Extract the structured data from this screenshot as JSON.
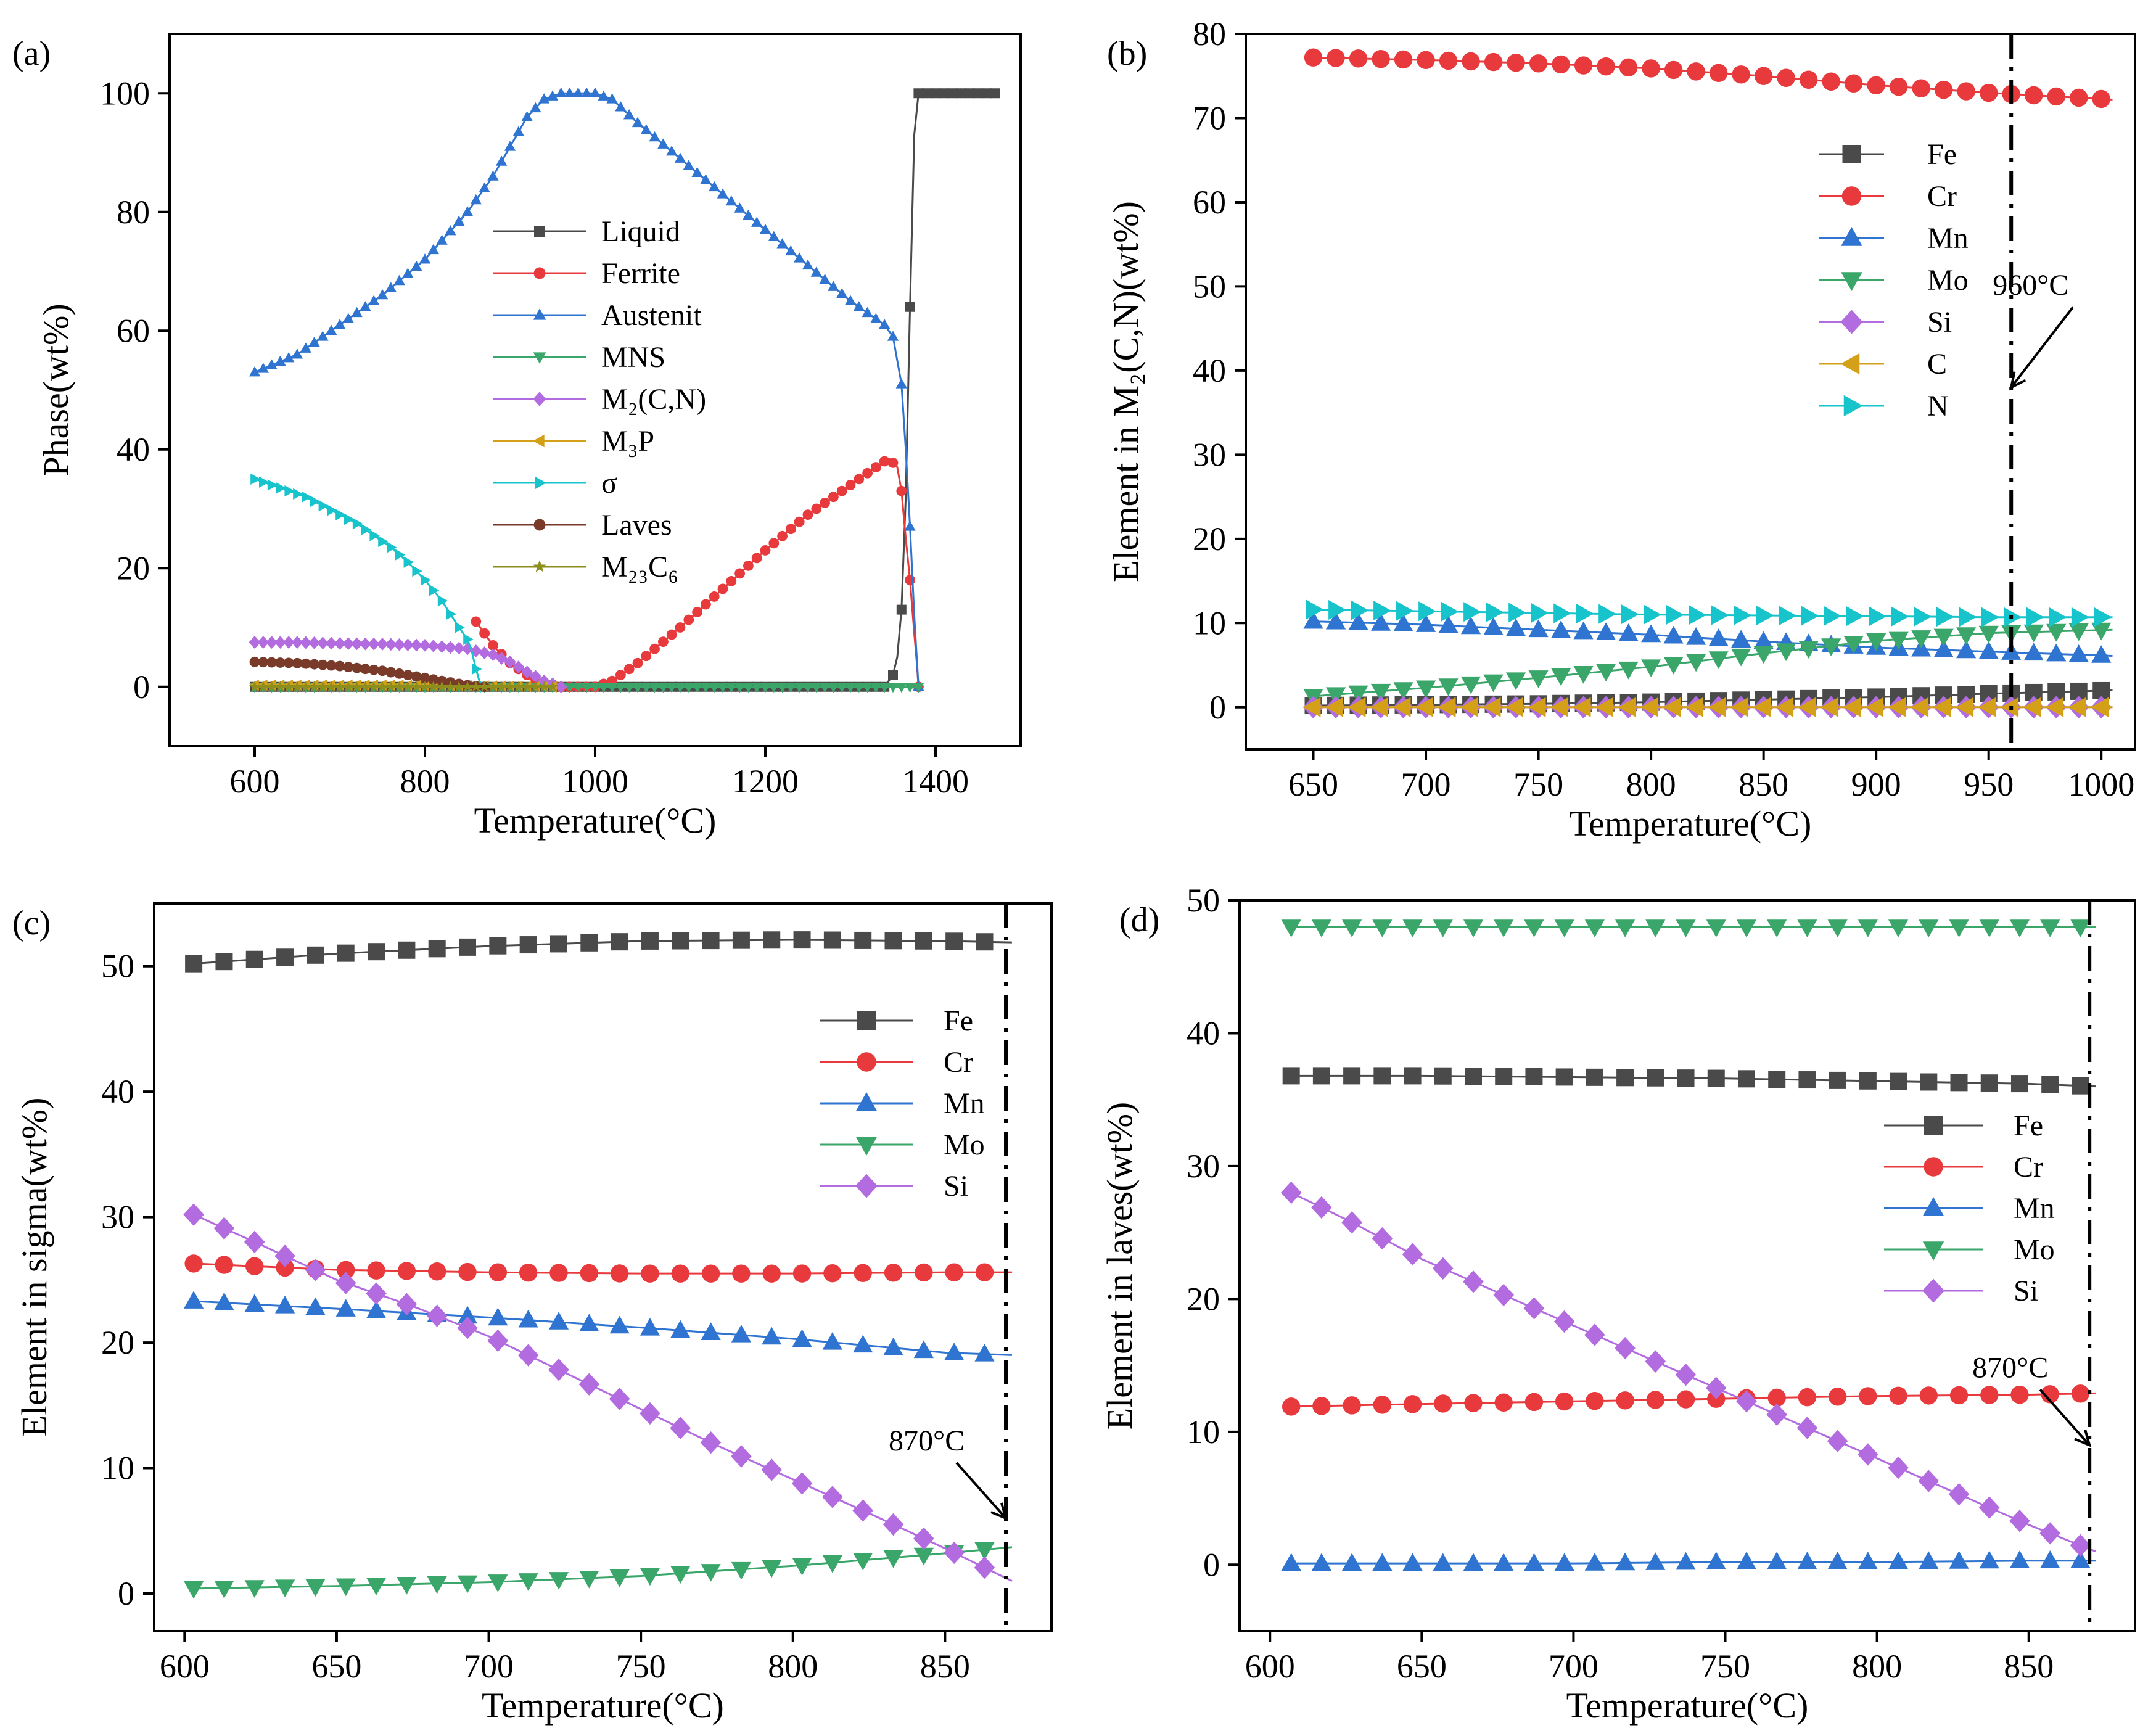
{
  "figure": {
    "panels": [
      "a",
      "b",
      "c",
      "d"
    ]
  },
  "chart_data": [
    {
      "id": "a",
      "type": "line",
      "panel_label": "(a)",
      "title": "",
      "xlabel": "Temperature(°C)",
      "ylabel": "Phase(wt%)",
      "xlim": [
        500,
        1500
      ],
      "ylim": [
        -10,
        110
      ],
      "xticks": [
        600,
        800,
        1000,
        1200,
        1400
      ],
      "yticks": [
        0,
        20,
        40,
        60,
        80,
        100
      ],
      "legend_position": "center",
      "series": [
        {
          "name": "Liquid",
          "label": "Liquid",
          "color": "#4a4a4a",
          "marker": "square",
          "x": [
            600,
            800,
            1000,
            1200,
            1340,
            1345,
            1350,
            1355,
            1360,
            1365,
            1370,
            1375,
            1380,
            1400,
            1420,
            1440,
            1460,
            1470
          ],
          "y": [
            0,
            0,
            0,
            0,
            0,
            1,
            2,
            5,
            13,
            32,
            64,
            93,
            100,
            100,
            100,
            100,
            100,
            100
          ]
        },
        {
          "name": "Ferrite",
          "label": "Ferrite",
          "color": "#e8393c",
          "marker": "circle",
          "x": [
            860,
            865,
            870,
            880,
            890,
            900,
            910,
            920,
            930,
            940,
            950,
            960,
            1000,
            1020,
            1050,
            1100,
            1150,
            1200,
            1250,
            1300,
            1330,
            1345,
            1355,
            1360,
            1365,
            1370,
            1375,
            1378,
            1380
          ],
          "y": [
            11,
            10,
            9,
            7,
            5.5,
            4,
            3,
            2,
            1.3,
            0.8,
            0.4,
            0,
            0,
            1,
            4,
            10,
            16.5,
            23,
            29,
            34,
            37,
            38.5,
            37,
            33,
            25,
            18,
            9,
            4,
            0
          ]
        },
        {
          "name": "Austenit",
          "label": "Austenit",
          "color": "#2f74d0",
          "marker": "triangle-up",
          "x": [
            600,
            650,
            700,
            750,
            800,
            850,
            880,
            900,
            920,
            940,
            960,
            1000,
            1020,
            1050,
            1100,
            1150,
            1200,
            1250,
            1300,
            1340,
            1350,
            1360,
            1365,
            1370,
            1375,
            1380
          ],
          "y": [
            53,
            56,
            61,
            66,
            72,
            80,
            86,
            91,
            96,
            99,
            100,
            100,
            99,
            95,
            89,
            83,
            77,
            71,
            65,
            61,
            59,
            51,
            40,
            27,
            12,
            0
          ]
        },
        {
          "name": "MNS",
          "label": "MNS",
          "color": "#3aa66a",
          "marker": "triangle-down",
          "x": [
            600,
            700,
            800,
            900,
            1000,
            1100,
            1200,
            1300,
            1380
          ],
          "y": [
            0,
            0,
            0,
            0,
            0,
            0,
            0,
            0,
            0
          ]
        },
        {
          "name": "M2(C,N)",
          "label": "M₂(C,N)",
          "color": "#b36be0",
          "marker": "diamond",
          "x": [
            600,
            650,
            700,
            750,
            800,
            850,
            880,
            900,
            920,
            940,
            960
          ],
          "y": [
            7.5,
            7.5,
            7.3,
            7.2,
            7,
            6.4,
            5.4,
            4.2,
            2.5,
            1,
            0
          ]
        },
        {
          "name": "M3P",
          "label": "M₃P",
          "color": "#d4a017",
          "marker": "triangle-left",
          "x": [
            600,
            650,
            700,
            750,
            800,
            850,
            900,
            950
          ],
          "y": [
            0.3,
            0.3,
            0.3,
            0.3,
            0.2,
            0.2,
            0.1,
            0
          ]
        },
        {
          "name": "σ",
          "label": "σ",
          "color": "#18c4cc",
          "marker": "triangle-right",
          "x": [
            600,
            620,
            640,
            660,
            680,
            700,
            720,
            740,
            760,
            780,
            800,
            820,
            840,
            850,
            855,
            860,
            865,
            870
          ],
          "y": [
            35,
            34,
            33,
            32,
            30.5,
            29,
            27.5,
            25.5,
            23.5,
            21,
            18,
            14.5,
            10,
            8,
            6,
            3,
            0.5,
            0
          ]
        },
        {
          "name": "Laves",
          "label": "Laves",
          "color": "#7a3a2a",
          "marker": "circle",
          "x": [
            600,
            650,
            700,
            750,
            800,
            820,
            840,
            850,
            860,
            870
          ],
          "y": [
            4.2,
            4,
            3.5,
            2.7,
            1.5,
            1,
            0.5,
            0.3,
            0.1,
            0
          ]
        },
        {
          "name": "M23C6",
          "label": "M₂₃C₆",
          "color": "#8e8e1e",
          "marker": "star",
          "x": [
            600,
            650,
            700,
            750,
            800,
            850,
            900,
            950
          ],
          "y": [
            0,
            0,
            0,
            0,
            0,
            0,
            0,
            0
          ]
        }
      ]
    },
    {
      "id": "b",
      "type": "line",
      "panel_label": "(b)",
      "title": "",
      "xlabel": "Temperature(°C)",
      "ylabel": "Element in M₂(C,N)(wt%)",
      "xlim": [
        620,
        1015
      ],
      "ylim": [
        -5,
        80
      ],
      "xticks": [
        650,
        700,
        750,
        800,
        850,
        900,
        950,
        1000
      ],
      "yticks": [
        0,
        10,
        20,
        30,
        40,
        50,
        60,
        70,
        80
      ],
      "legend_position": "top-right",
      "vline": {
        "x": 960
      },
      "annotation": {
        "text": "960°C",
        "x": 960,
        "y": 38
      },
      "series": [
        {
          "name": "Fe",
          "color": "#4a4a4a",
          "marker": "square",
          "x": [
            650,
            700,
            750,
            800,
            850,
            900,
            950,
            1005
          ],
          "y": [
            0.2,
            0.3,
            0.4,
            0.6,
            0.9,
            1.2,
            1.6,
            2
          ]
        },
        {
          "name": "Cr",
          "color": "#e8393c",
          "marker": "circle",
          "x": [
            650,
            700,
            750,
            800,
            850,
            900,
            950,
            1005
          ],
          "y": [
            77.2,
            76.9,
            76.5,
            75.9,
            75,
            73.9,
            73,
            72.2
          ]
        },
        {
          "name": "Mn",
          "color": "#2f74d0",
          "marker": "triangle-up",
          "x": [
            650,
            700,
            750,
            800,
            850,
            900,
            950,
            1005
          ],
          "y": [
            10.2,
            9.8,
            9.2,
            8.6,
            7.8,
            7.1,
            6.6,
            6.1
          ]
        },
        {
          "name": "Mo",
          "color": "#3aa66a",
          "marker": "triangle-down",
          "x": [
            650,
            700,
            750,
            800,
            850,
            900,
            950,
            1005
          ],
          "y": [
            1.3,
            2.3,
            3.5,
            4.8,
            6.4,
            7.9,
            8.8,
            9.2
          ]
        },
        {
          "name": "Si",
          "color": "#b36be0",
          "marker": "diamond",
          "x": [
            650,
            700,
            750,
            800,
            850,
            900,
            950,
            1005
          ],
          "y": [
            0,
            0,
            0,
            0,
            0,
            0,
            0,
            0
          ]
        },
        {
          "name": "C",
          "color": "#d4a017",
          "marker": "triangle-left",
          "x": [
            650,
            700,
            750,
            800,
            850,
            900,
            950,
            1005
          ],
          "y": [
            0,
            0,
            0,
            0,
            0,
            0,
            0,
            0
          ]
        },
        {
          "name": "N",
          "color": "#18c4cc",
          "marker": "triangle-right",
          "x": [
            650,
            700,
            750,
            800,
            850,
            900,
            950,
            1005
          ],
          "y": [
            11.6,
            11.4,
            11.2,
            11,
            10.9,
            10.8,
            10.7,
            10.7
          ]
        }
      ]
    },
    {
      "id": "c",
      "type": "line",
      "panel_label": "(c)",
      "title": "",
      "xlabel": "Temperature(°C)",
      "ylabel": "Element in sigma(wt%)",
      "xlim": [
        590,
        885
      ],
      "ylim": [
        -3,
        55
      ],
      "xticks": [
        600,
        650,
        700,
        750,
        800,
        850
      ],
      "yticks": [
        0,
        10,
        20,
        30,
        40,
        50
      ],
      "legend_position": "top-right",
      "vline": {
        "x": 870
      },
      "annotation": {
        "text": "870°C",
        "x": 870,
        "y": 6
      },
      "series": [
        {
          "name": "Fe",
          "color": "#4a4a4a",
          "marker": "square",
          "x": [
            603,
            650,
            700,
            750,
            800,
            850,
            872
          ],
          "y": [
            50.2,
            51,
            51.6,
            52,
            52.1,
            52,
            51.9
          ]
        },
        {
          "name": "Cr",
          "color": "#e8393c",
          "marker": "circle",
          "x": [
            603,
            650,
            700,
            750,
            800,
            850,
            872
          ],
          "y": [
            26.3,
            25.8,
            25.6,
            25.5,
            25.5,
            25.6,
            25.6
          ]
        },
        {
          "name": "Mn",
          "color": "#2f74d0",
          "marker": "triangle-up",
          "x": [
            603,
            650,
            700,
            750,
            800,
            850,
            872
          ],
          "y": [
            23.3,
            22.7,
            22,
            21.2,
            20.3,
            19.2,
            19
          ]
        },
        {
          "name": "Mo",
          "color": "#3aa66a",
          "marker": "triangle-down",
          "x": [
            603,
            650,
            700,
            750,
            800,
            850,
            872
          ],
          "y": [
            0.4,
            0.6,
            0.9,
            1.4,
            2.2,
            3.2,
            3.7
          ]
        },
        {
          "name": "Si",
          "color": "#b36be0",
          "marker": "diamond",
          "x": [
            603,
            625,
            650,
            675,
            700,
            725,
            750,
            775,
            800,
            825,
            850,
            872
          ],
          "y": [
            30.2,
            27.8,
            25,
            22.9,
            20.5,
            17.6,
            14.7,
            11.8,
            9.1,
            6.4,
            3.6,
            1
          ]
        }
      ]
    },
    {
      "id": "d",
      "type": "line",
      "panel_label": "(d)",
      "title": "",
      "xlabel": "Temperature(°C)",
      "ylabel": "Element in laves(wt%)",
      "xlim": [
        590,
        885
      ],
      "ylim": [
        -5,
        50
      ],
      "xticks": [
        600,
        650,
        700,
        750,
        800,
        850
      ],
      "yticks": [
        0,
        10,
        20,
        30,
        40,
        50
      ],
      "legend_position": "right",
      "vline": {
        "x": 870
      },
      "annotation": {
        "text": "870°C",
        "x": 870,
        "y": 9
      },
      "series": [
        {
          "name": "Fe",
          "color": "#4a4a4a",
          "marker": "square",
          "x": [
            607,
            650,
            700,
            750,
            800,
            850,
            872
          ],
          "y": [
            36.8,
            36.8,
            36.7,
            36.6,
            36.4,
            36.2,
            36
          ]
        },
        {
          "name": "Cr",
          "color": "#e8393c",
          "marker": "circle",
          "x": [
            607,
            650,
            700,
            750,
            800,
            850,
            872
          ],
          "y": [
            11.9,
            12.1,
            12.3,
            12.5,
            12.7,
            12.8,
            12.9
          ]
        },
        {
          "name": "Mn",
          "color": "#2f74d0",
          "marker": "triangle-up",
          "x": [
            607,
            650,
            700,
            750,
            800,
            850,
            872
          ],
          "y": [
            0.1,
            0.1,
            0.1,
            0.2,
            0.2,
            0.3,
            0.3
          ]
        },
        {
          "name": "Mo",
          "color": "#3aa66a",
          "marker": "triangle-down",
          "x": [
            607,
            650,
            700,
            750,
            800,
            850,
            872
          ],
          "y": [
            48,
            48,
            48,
            48,
            48,
            48,
            48
          ]
        },
        {
          "name": "Si",
          "color": "#b36be0",
          "marker": "diamond",
          "x": [
            607,
            625,
            650,
            675,
            700,
            725,
            750,
            775,
            800,
            825,
            850,
            872
          ],
          "y": [
            28,
            26,
            23,
            20.5,
            18,
            15.5,
            13,
            10.5,
            8,
            5.5,
            3,
            1
          ]
        }
      ]
    }
  ]
}
